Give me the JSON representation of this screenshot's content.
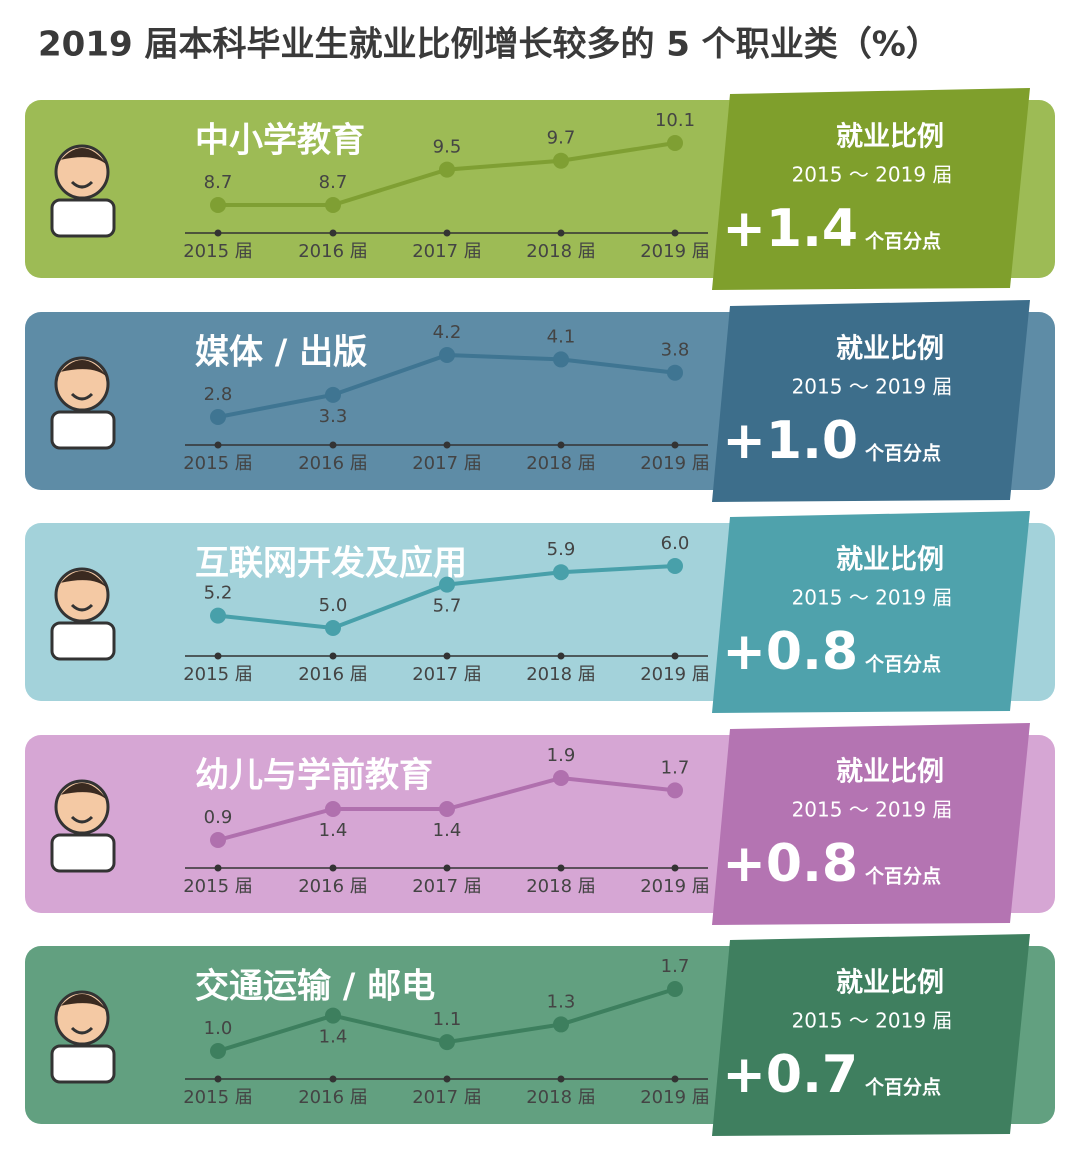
{
  "title": "2019 届本科毕业生就业比例增长较多的 5 个职业类（%）",
  "chart_data": [
    {
      "type": "line",
      "title": "中小学教育",
      "categories": [
        "2015 届",
        "2016 届",
        "2017 届",
        "2018 届",
        "2019 届"
      ],
      "values": [
        8.7,
        8.7,
        9.5,
        9.7,
        10.1
      ],
      "value_labels": [
        "8.7",
        "8.7",
        "9.5",
        "9.7",
        "10.1"
      ],
      "color": "#7f9f33",
      "panel_color": "#9dbb55",
      "accent_color": "#7f9f2c",
      "side_title": "就业比例",
      "side_range": "2015 ～ 2019 届",
      "change": {
        "value": 1.4,
        "label": "+1.4"
      },
      "change_unit": "个百分点"
    },
    {
      "type": "line",
      "title": "媒体 / 出版",
      "categories": [
        "2015 届",
        "2016 届",
        "2017 届",
        "2018 届",
        "2019 届"
      ],
      "values": [
        2.8,
        3.3,
        4.2,
        4.1,
        3.8
      ],
      "value_labels": [
        "2.8",
        "3.3",
        "4.2",
        "4.1",
        "3.8"
      ],
      "color": "#3f7592",
      "panel_color": "#5e8ca6",
      "accent_color": "#3d6e8b",
      "side_title": "就业比例",
      "side_range": "2015 ～ 2019 届",
      "change": {
        "value": 1.0,
        "label": "+1.0"
      },
      "change_unit": "个百分点"
    },
    {
      "type": "line",
      "title": "互联网开发及应用",
      "categories": [
        "2015 届",
        "2016 届",
        "2017 届",
        "2018 届",
        "2019 届"
      ],
      "values": [
        5.2,
        5.0,
        5.7,
        5.9,
        6.0
      ],
      "value_labels": [
        "5.2",
        "5.0",
        "5.7",
        "5.9",
        "6.0"
      ],
      "color": "#48a0aa",
      "panel_color": "#a3d2da",
      "accent_color": "#4fa2ac",
      "side_title": "就业比例",
      "side_range": "2015 ～ 2019 届",
      "change": {
        "value": 0.8,
        "label": "+0.8"
      },
      "change_unit": "个百分点"
    },
    {
      "type": "line",
      "title": "幼儿与学前教育",
      "categories": [
        "2015 届",
        "2016 届",
        "2017 届",
        "2018 届",
        "2019 届"
      ],
      "values": [
        0.9,
        1.4,
        1.4,
        1.9,
        1.7
      ],
      "value_labels": [
        "0.9",
        "1.4",
        "1.4",
        "1.9",
        "1.7"
      ],
      "color": "#b070ae",
      "panel_color": "#d6a6d4",
      "accent_color": "#b474b2",
      "side_title": "就业比例",
      "side_range": "2015 ～ 2019 届",
      "change": {
        "value": 0.8,
        "label": "+0.8"
      },
      "change_unit": "个百分点"
    },
    {
      "type": "line",
      "title": "交通运输 / 邮电",
      "categories": [
        "2015 届",
        "2016 届",
        "2017 届",
        "2018 届",
        "2019 届"
      ],
      "values": [
        1.0,
        1.4,
        1.1,
        1.3,
        1.7
      ],
      "value_labels": [
        "1.0",
        "1.4",
        "1.1",
        "1.3",
        "1.7"
      ],
      "color": "#3d7f5e",
      "panel_color": "#62a080",
      "accent_color": "#3f7f5f",
      "side_title": "就业比例",
      "side_range": "2015 ～ 2019 届",
      "change": {
        "value": 0.7,
        "label": "+0.7"
      },
      "change_unit": "个百分点"
    }
  ]
}
